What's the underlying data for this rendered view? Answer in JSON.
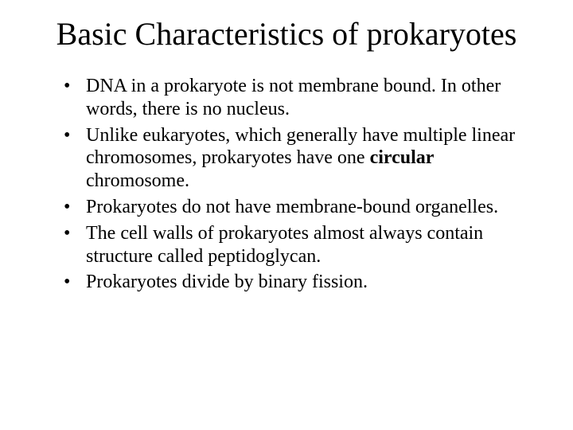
{
  "title": "Basic Characteristics of prokaryotes",
  "bullets": [
    {
      "pre": "DNA in a prokaryote is not membrane bound.  In other words, there is no nucleus.",
      "bold": "",
      "post": ""
    },
    {
      "pre": "Unlike eukaryotes, which generally have multiple linear chromosomes, prokaryotes have one ",
      "bold": "circular",
      "post": " chromosome."
    },
    {
      "pre": "Prokaryotes do not have membrane-bound organelles.",
      "bold": "",
      "post": ""
    },
    {
      "pre": "The cell walls of prokaryotes almost always contain structure called peptidoglycan.",
      "bold": "",
      "post": ""
    },
    {
      "pre": "Prokaryotes divide by binary fission.",
      "bold": "",
      "post": ""
    }
  ]
}
